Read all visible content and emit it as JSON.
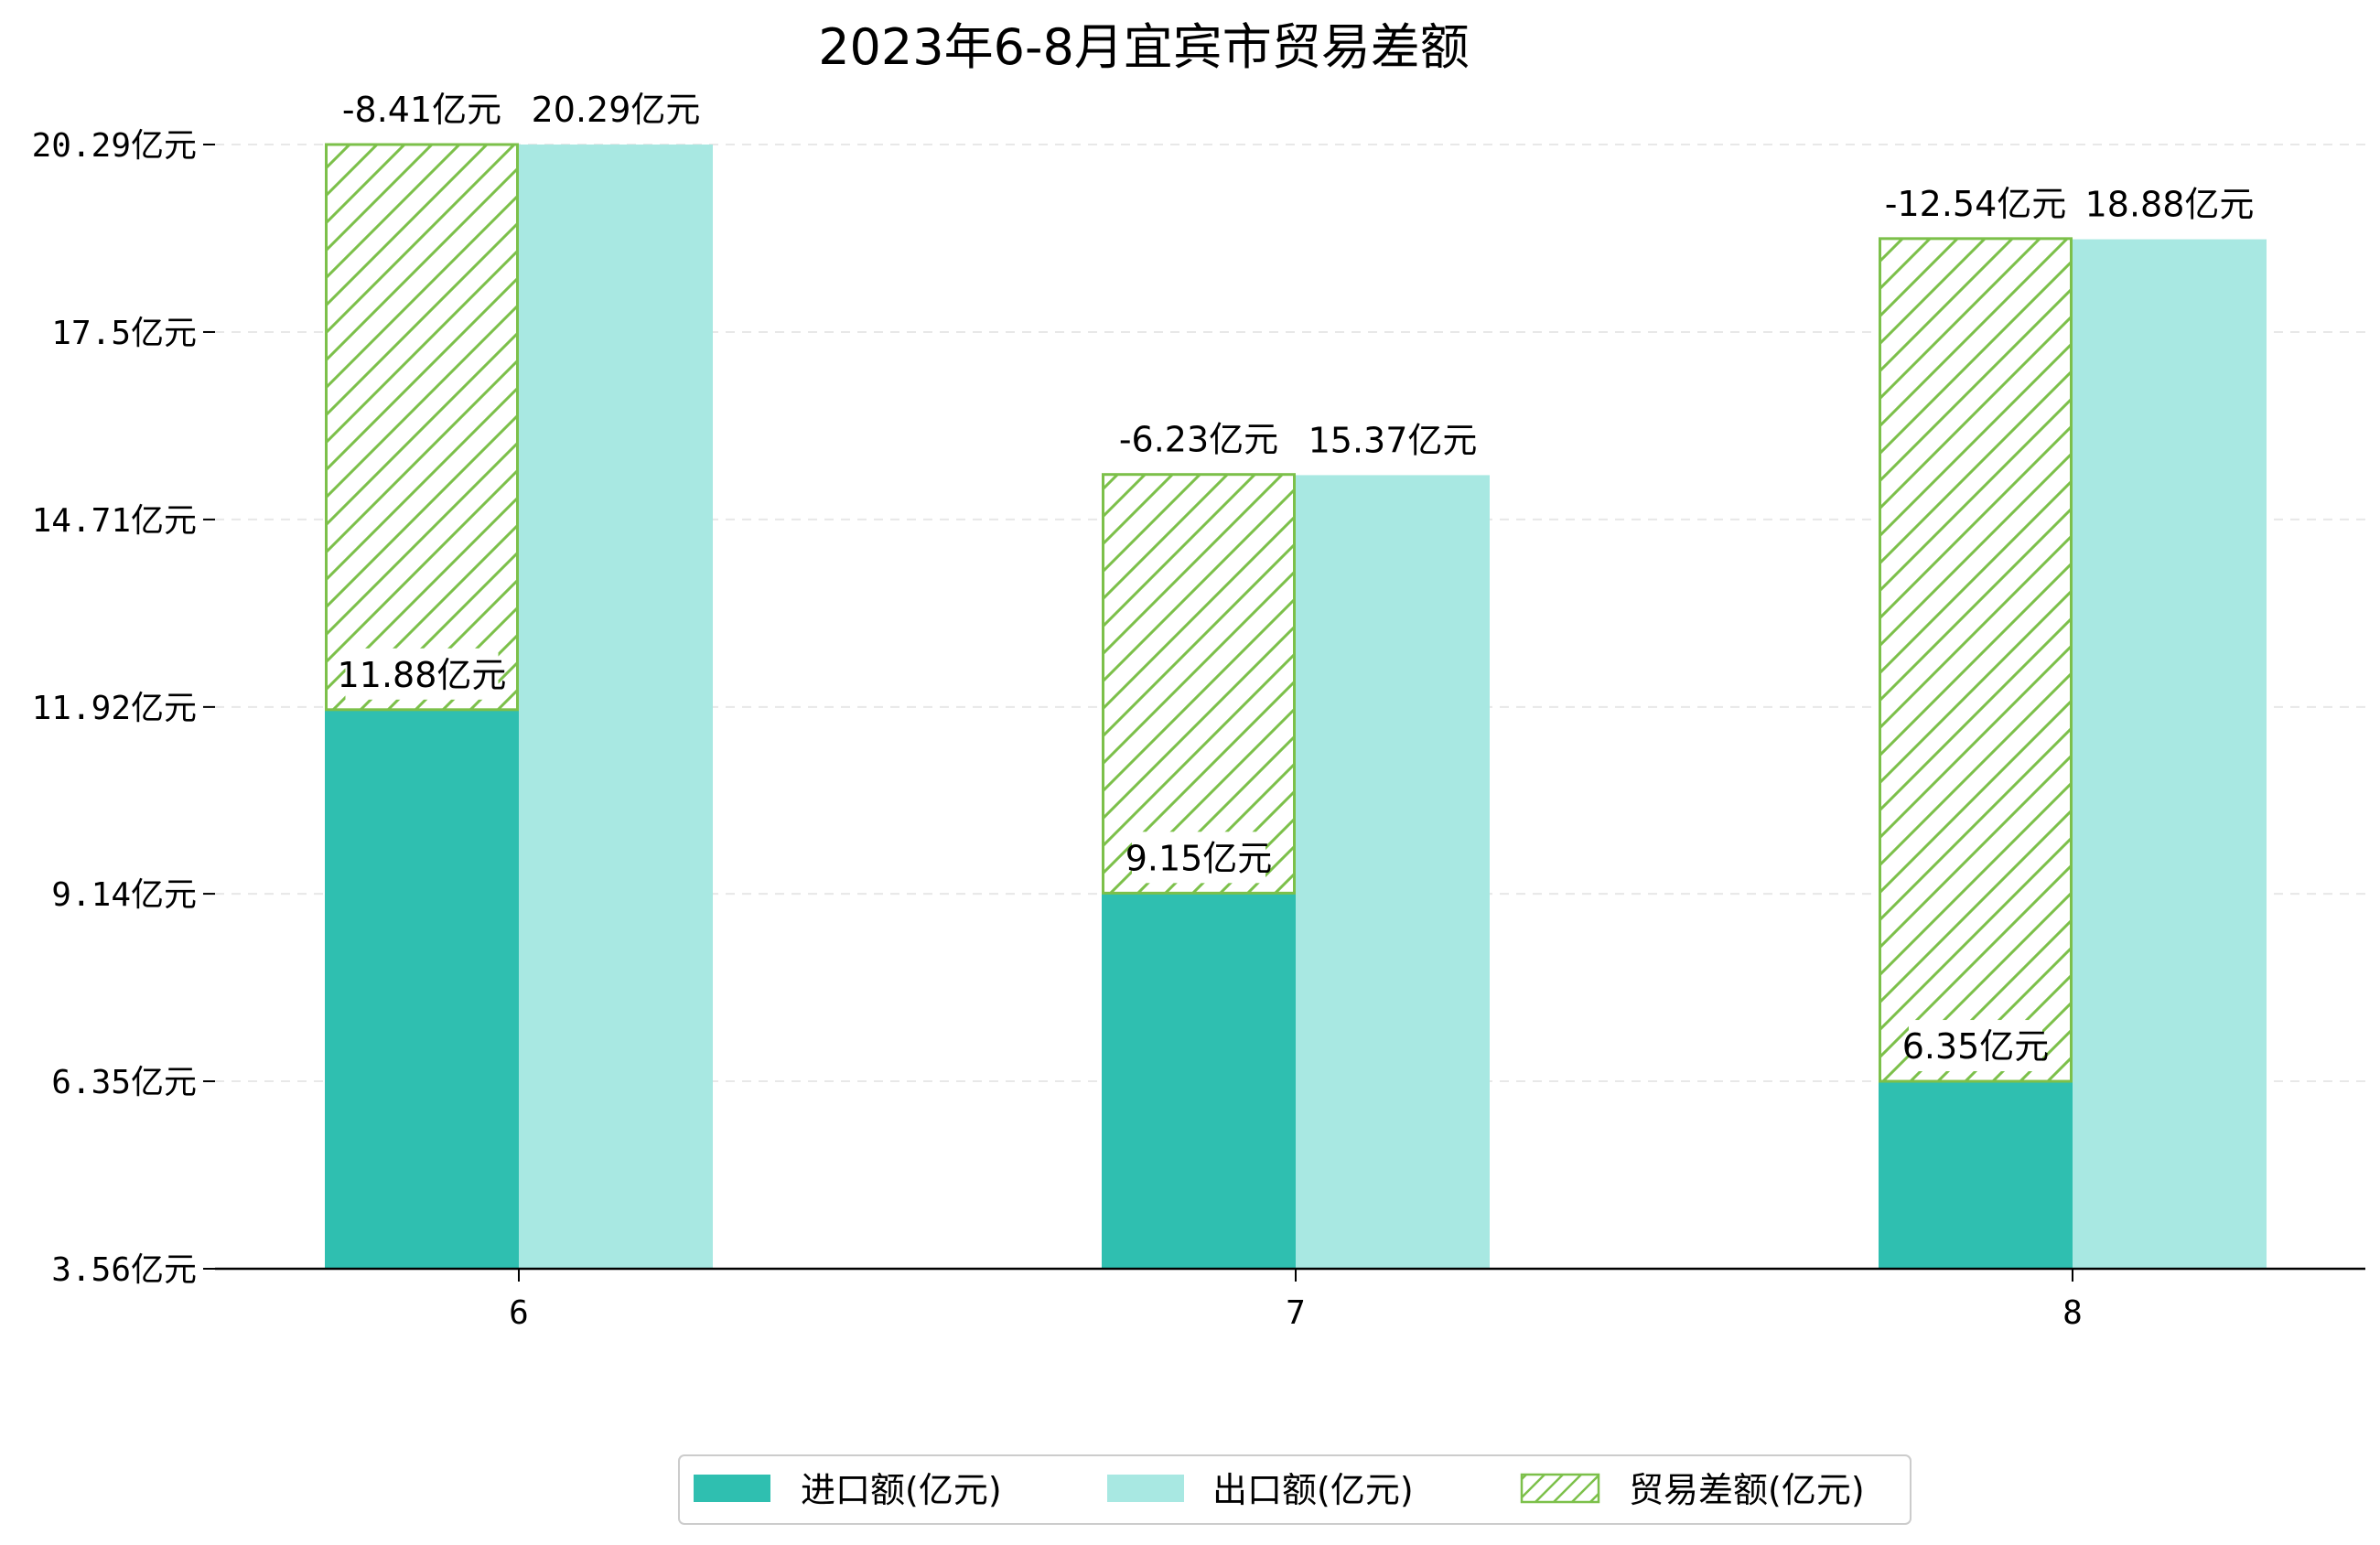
{
  "chart_data": {
    "type": "bar",
    "title": "2023年6-8月宜宾市贸易差额",
    "categories": [
      "6",
      "7",
      "8"
    ],
    "series": [
      {
        "name": "进口额(亿元)",
        "values": [
          11.88,
          9.15,
          6.35
        ],
        "labels": [
          "11.88亿元",
          "9.15亿元",
          "6.35亿元"
        ],
        "color": "#2fbfb0"
      },
      {
        "name": "出口额(亿元)",
        "values": [
          20.29,
          15.37,
          18.88
        ],
        "labels": [
          "20.29亿元",
          "15.37亿元",
          "18.88亿元"
        ],
        "color": "#a8e8e2"
      },
      {
        "name": "贸易差额(亿元)",
        "values": [
          -8.41,
          -6.23,
          -12.54
        ],
        "labels": [
          "-8.41亿元",
          "-6.23亿元",
          "-12.54亿元"
        ],
        "color": "#7cc04a",
        "pattern": "hatch"
      }
    ],
    "yticks": [
      3.56,
      6.35,
      9.14,
      11.92,
      14.71,
      17.5,
      20.29
    ],
    "ytick_labels": [
      "3.56亿元",
      "6.35亿元",
      "9.14亿元",
      "11.92亿元",
      "14.71亿元",
      "17.5亿元",
      "20.29亿元"
    ],
    "ylim": [
      3.56,
      20.29
    ],
    "grid": "horizontal-dashed",
    "legend_position": "bottom-center"
  }
}
